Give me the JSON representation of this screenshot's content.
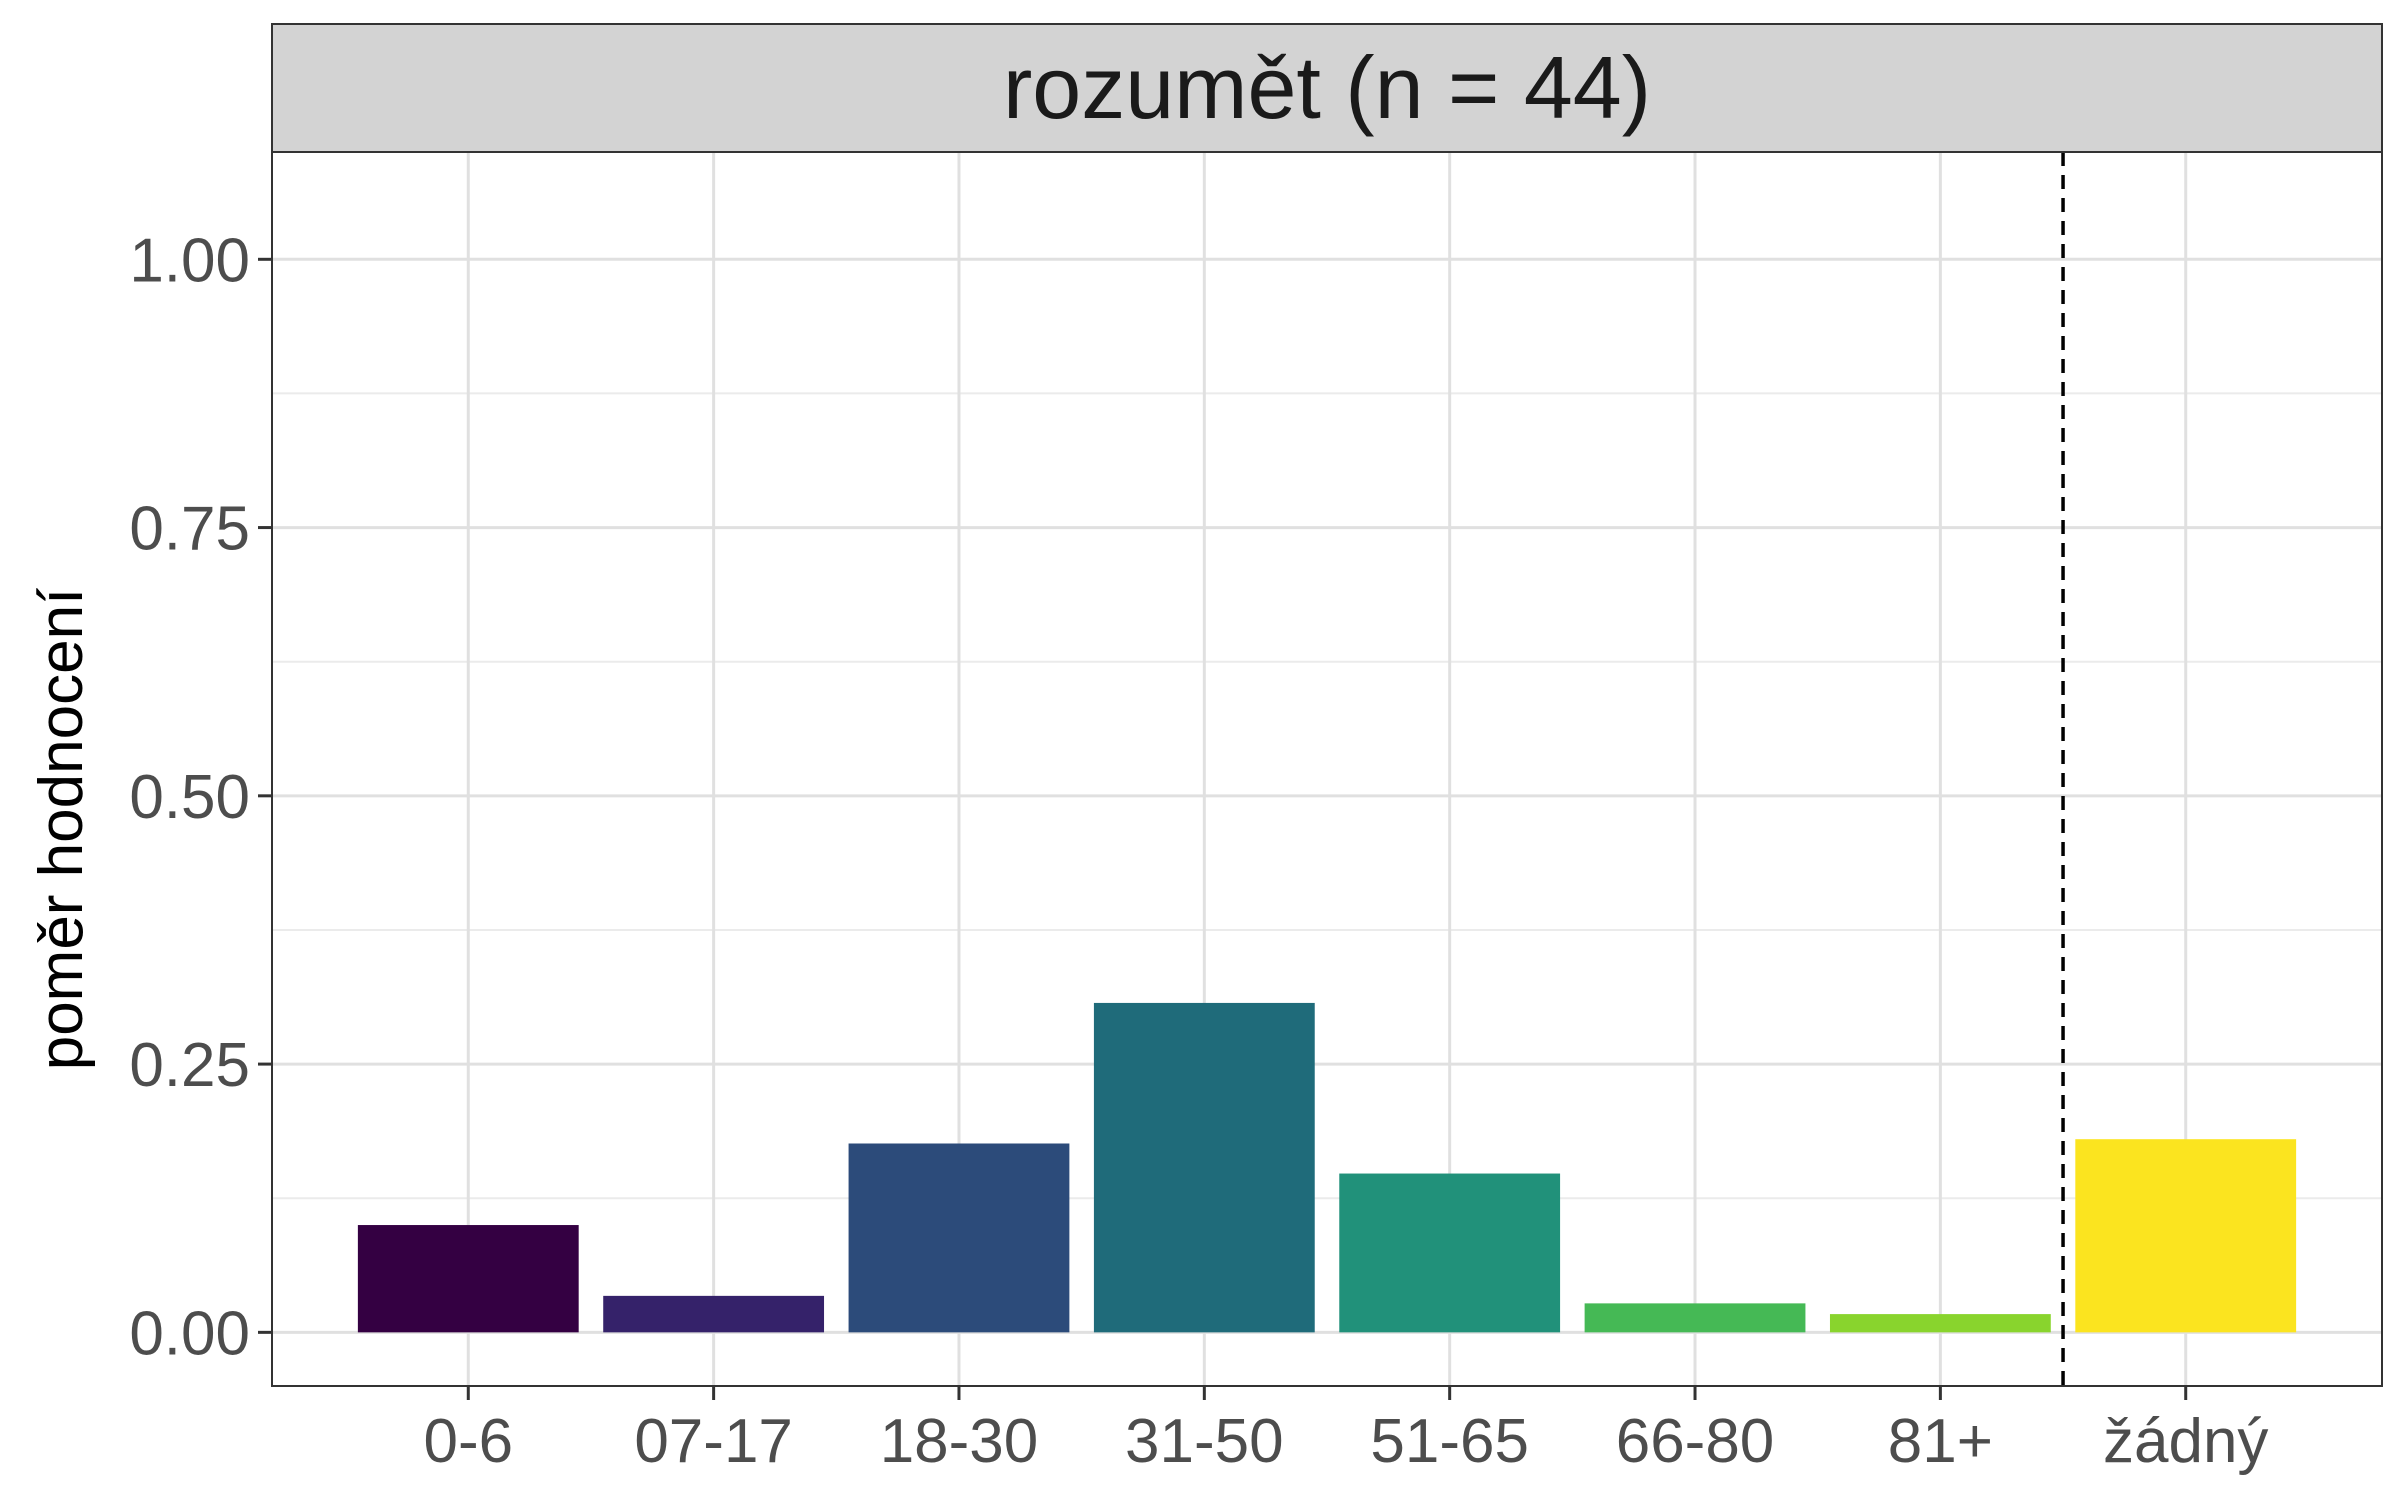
{
  "chart_data": {
    "type": "bar",
    "title": "",
    "facet_label": "rozumět (n = 44)",
    "xlabel": "",
    "ylabel": "poměr hodnocení",
    "ylim": [
      -0.05,
      1.1
    ],
    "y_ticks": [
      "0.00",
      "0.25",
      "0.50",
      "0.75",
      "1.00"
    ],
    "y_tick_values": [
      0,
      0.25,
      0.5,
      0.75,
      1.0
    ],
    "grid": true,
    "legend": "none",
    "reference_line": {
      "style": "dashed",
      "between": [
        "81+",
        "žádný"
      ]
    },
    "categories": [
      "0-6",
      "07-17",
      "18-30",
      "31-50",
      "51-65",
      "66-80",
      "81+",
      "žádný"
    ],
    "values": [
      0.1,
      0.034,
      0.176,
      0.307,
      0.148,
      0.027,
      0.017,
      0.18
    ],
    "colors": [
      "#340042",
      "#35226a",
      "#2c4b7a",
      "#1f6b7a",
      "#21917a",
      "#45b955",
      "#89d42d",
      "#fbe41f"
    ]
  }
}
